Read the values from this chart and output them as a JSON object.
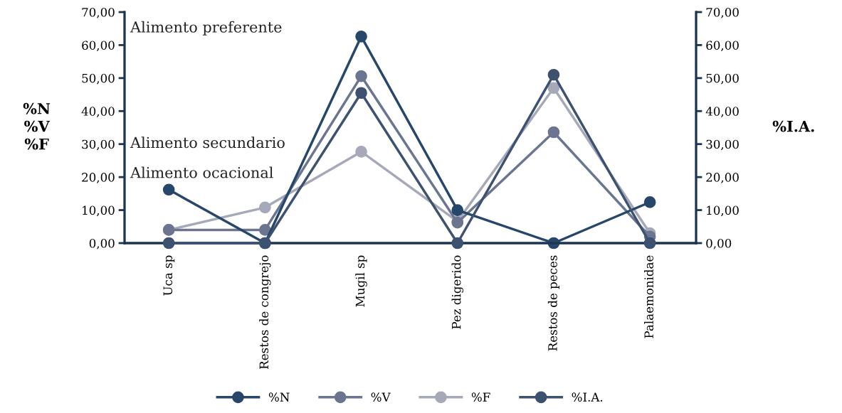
{
  "chart_data": {
    "type": "line",
    "ylabel": "%N\n%V\n%F",
    "y2label": "%I.A.",
    "categories": [
      "Uca sp",
      "Restos de congrejo",
      "Mugil sp",
      "Pez digerido",
      "Restos de peces",
      "Palaemonidae"
    ],
    "series": [
      {
        "name": "%N",
        "color": "#26476a",
        "values": [
          16.2,
          0,
          62.6,
          10.0,
          0,
          12.4
        ]
      },
      {
        "name": "%V",
        "color": "#6b7590",
        "values": [
          4.0,
          4.0,
          50.6,
          6.2,
          33.6,
          2.0
        ]
      },
      {
        "name": "%F",
        "color": "#a5a9b8",
        "values": [
          4.0,
          10.8,
          27.7,
          6.6,
          47.0,
          3.0
        ]
      },
      {
        "name": "%I.A.",
        "color": "#3d5170",
        "axis": "y2",
        "values": [
          0,
          0,
          45.5,
          0,
          51.0,
          0
        ]
      }
    ],
    "ylim": [
      0,
      70
    ],
    "yticks": [
      {
        "value": 0,
        "label": "0,00"
      },
      {
        "value": 10,
        "label": "10,00"
      },
      {
        "value": 20,
        "label": "20,00"
      },
      {
        "value": 30,
        "label": "30,00"
      },
      {
        "value": 40,
        "label": "40,00"
      },
      {
        "value": 50,
        "label": "50,00"
      },
      {
        "value": 60,
        "label": "60,00"
      },
      {
        "value": 70,
        "label": "70,00"
      }
    ],
    "y2lim": [
      0,
      70
    ],
    "y2ticks": [
      {
        "value": 0,
        "label": "0,00"
      },
      {
        "value": 10,
        "label": "10,00"
      },
      {
        "value": 20,
        "label": "20,00"
      },
      {
        "value": 30,
        "label": "30,00"
      },
      {
        "value": 40,
        "label": "40,00"
      },
      {
        "value": 50,
        "label": "50,00"
      },
      {
        "value": 60,
        "label": "60,00"
      },
      {
        "value": 70,
        "label": "70,00"
      }
    ],
    "annotations": [
      "Alimento preferente",
      "Alimento secundario",
      "Alimento ocacional"
    ],
    "marker": "circle",
    "line_style": "solid",
    "grid": false,
    "legend": "bottom"
  }
}
